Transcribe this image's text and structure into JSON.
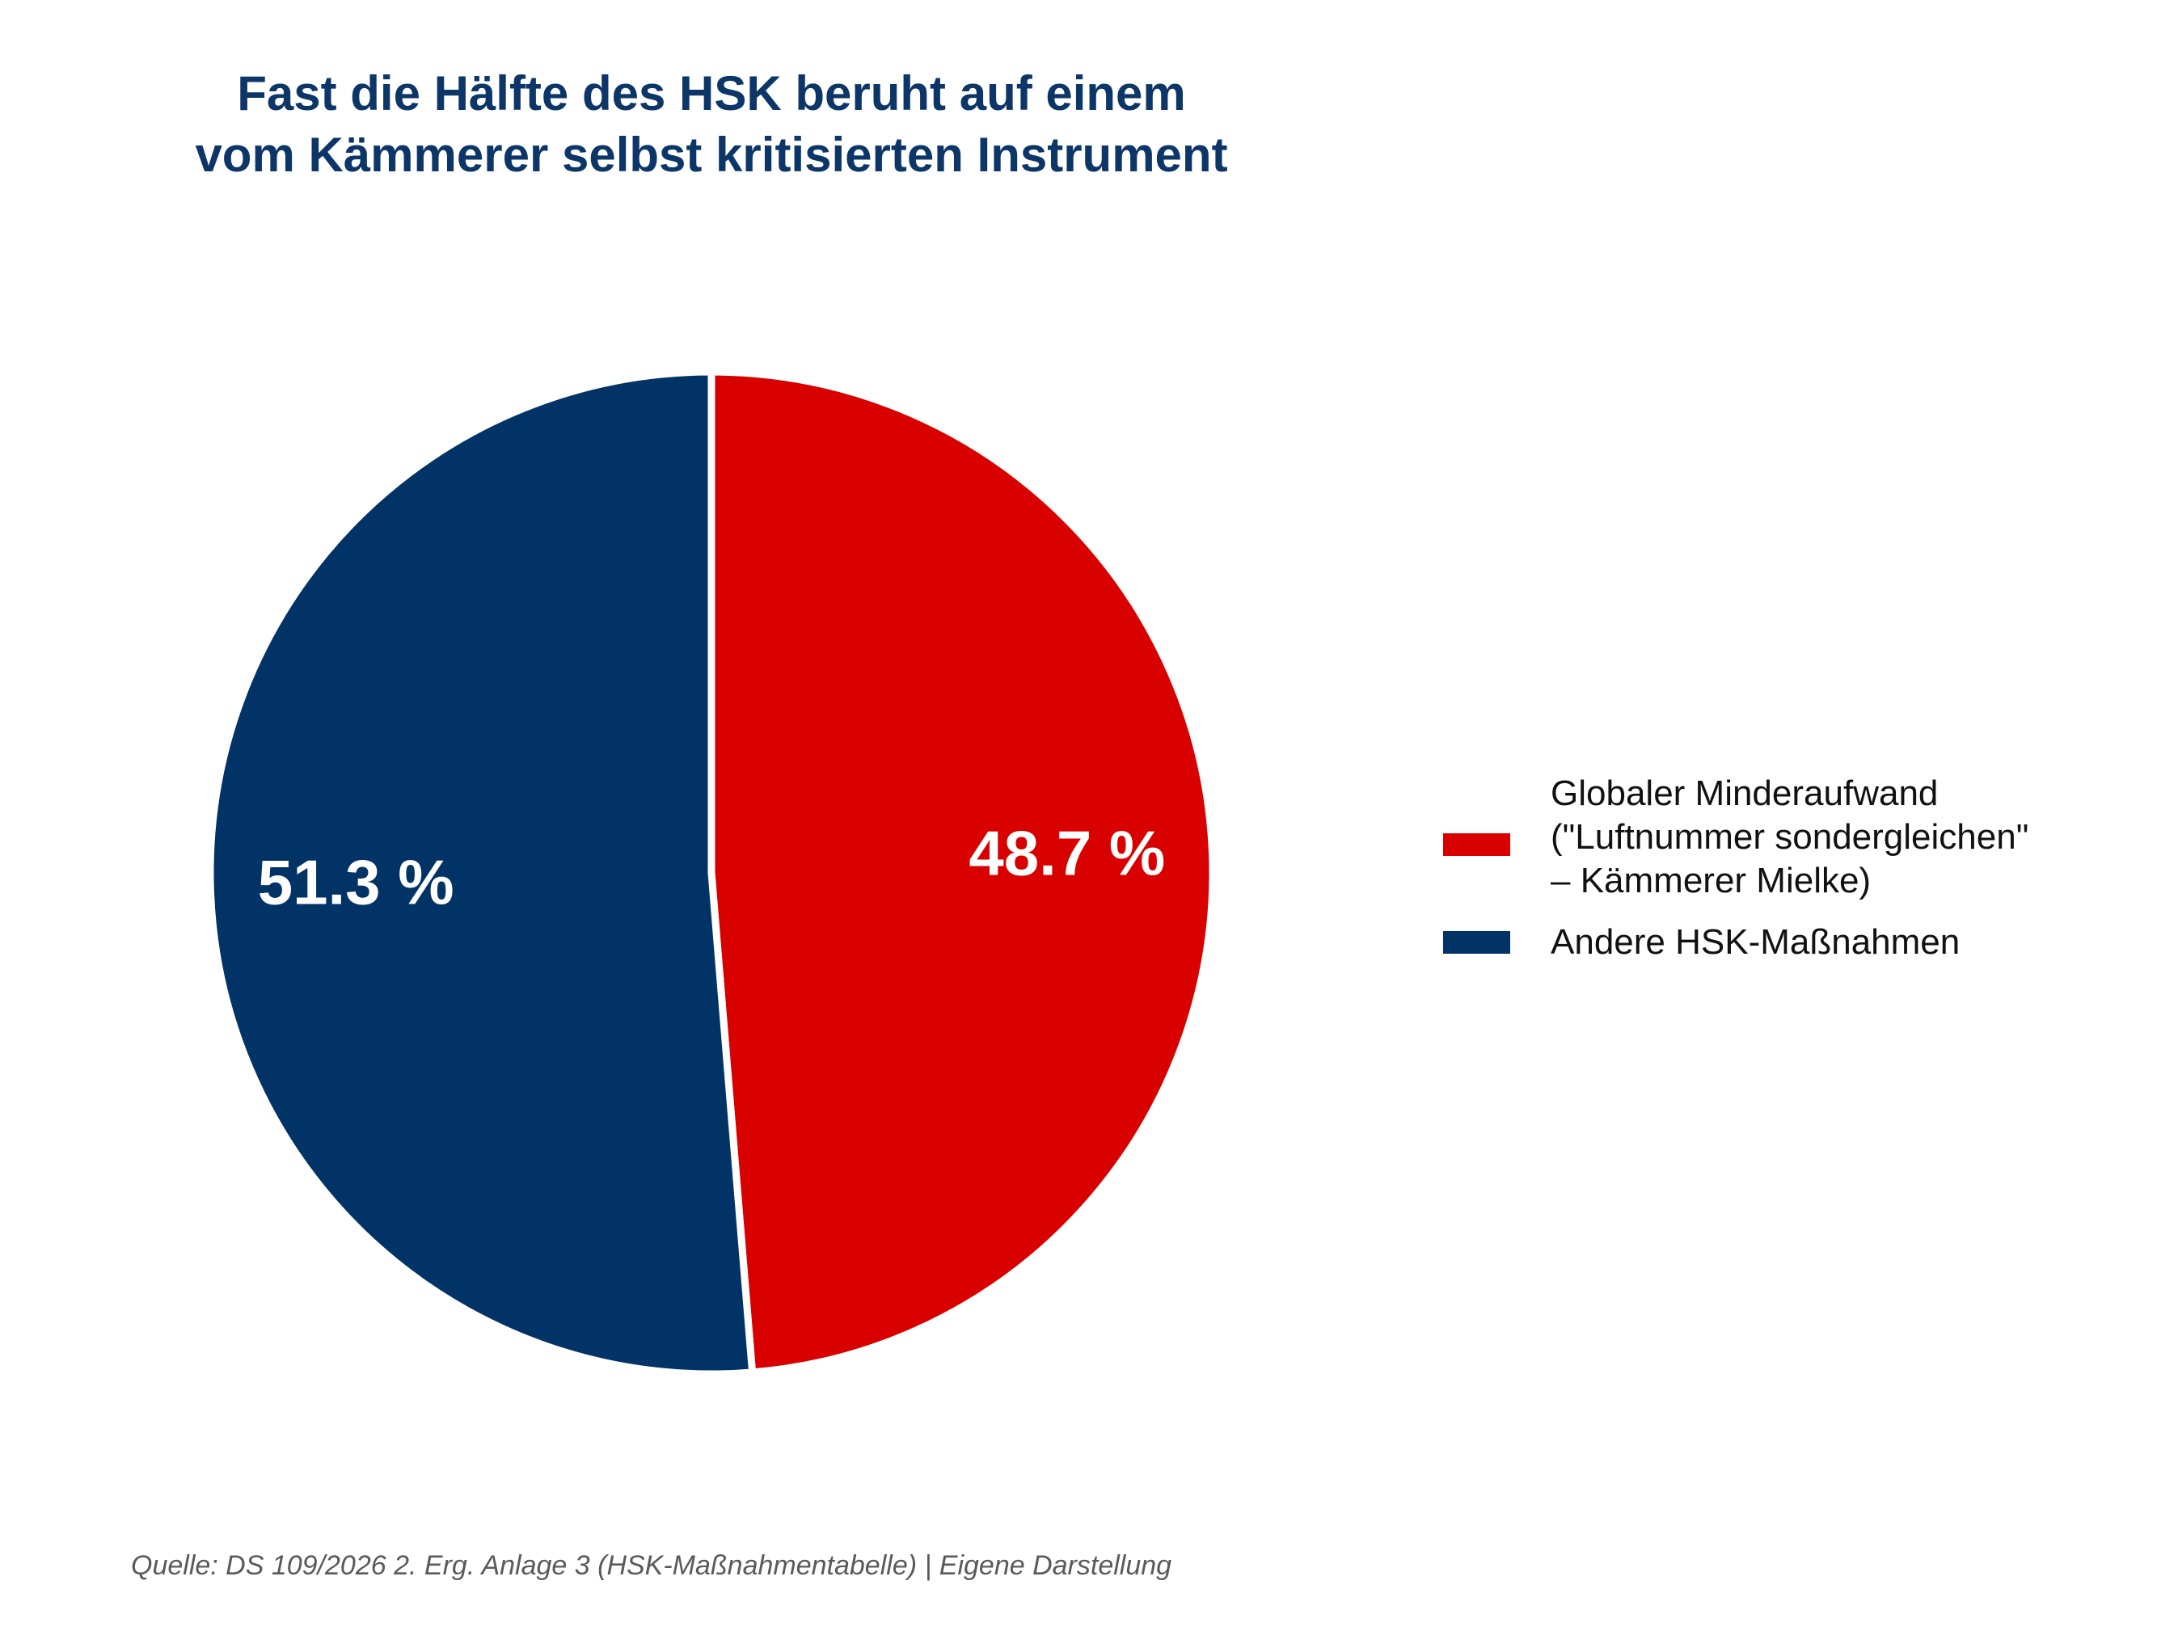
{
  "title": {
    "line1": "Fast die Hälfte des HSK beruht auf einem",
    "line2": "vom Kämmerer selbst kritisierten Instrument"
  },
  "chart_data": {
    "type": "pie",
    "title": "Fast die Hälfte des HSK beruht auf einem vom Kämmerer selbst kritisierten Instrument",
    "start_angle_deg": 90,
    "direction": "clockwise",
    "slices": [
      {
        "label": "Globaler Minderaufwand (\"Luftnummer sondergleichen\" – Kämmerer Mielke)",
        "value": 48.7,
        "display": "48.7 %",
        "color": "#d90000"
      },
      {
        "label": "Andere HSK-Maßnahmen",
        "value": 51.3,
        "display": "51.3 %",
        "color": "#023366"
      }
    ],
    "legend_position": "right"
  },
  "legend": {
    "items": [
      {
        "lines": [
          "Globaler Minderaufwand",
          "(\"Luftnummer sondergleichen\"",
          "– Kämmerer Mielke)"
        ],
        "color": "#d90000"
      },
      {
        "lines": [
          "Andere HSK-Maßnahmen"
        ],
        "color": "#023366"
      }
    ]
  },
  "source": "Quelle: DS 109/2026 2. Erg. Anlage 3 (HSK-Maßnahmentabelle) | Eigene Darstellung"
}
